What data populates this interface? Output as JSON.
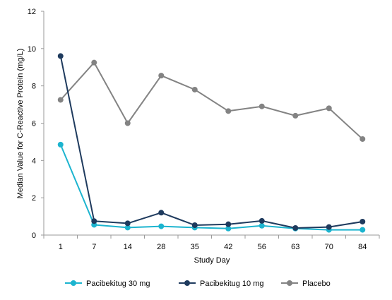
{
  "chart_data": {
    "type": "line",
    "title": "",
    "xlabel": "Study Day",
    "ylabel": "Median Value for C-Reactive Protein (mg/L)",
    "categories": [
      "1",
      "7",
      "14",
      "28",
      "35",
      "42",
      "56",
      "63",
      "70",
      "84"
    ],
    "ylim": [
      0,
      12
    ],
    "yticks": [
      "0",
      "2",
      "4",
      "6",
      "8",
      "10",
      "12"
    ],
    "grid": false,
    "legend_position": "bottom",
    "series": [
      {
        "name": "Pacibekitug 30 mg",
        "color": "#1cb4cf",
        "values": [
          4.85,
          0.55,
          0.4,
          0.47,
          0.4,
          0.35,
          0.5,
          0.35,
          0.28,
          0.28
        ]
      },
      {
        "name": "Pacibekitug 10 mg",
        "color": "#1f3b5e",
        "values": [
          9.6,
          0.75,
          0.63,
          1.2,
          0.53,
          0.58,
          0.76,
          0.38,
          0.43,
          0.72
        ]
      },
      {
        "name": "Placebo",
        "color": "#838383",
        "values": [
          7.25,
          9.25,
          6.0,
          8.55,
          7.8,
          6.65,
          6.9,
          6.4,
          6.8,
          5.15
        ]
      }
    ]
  }
}
